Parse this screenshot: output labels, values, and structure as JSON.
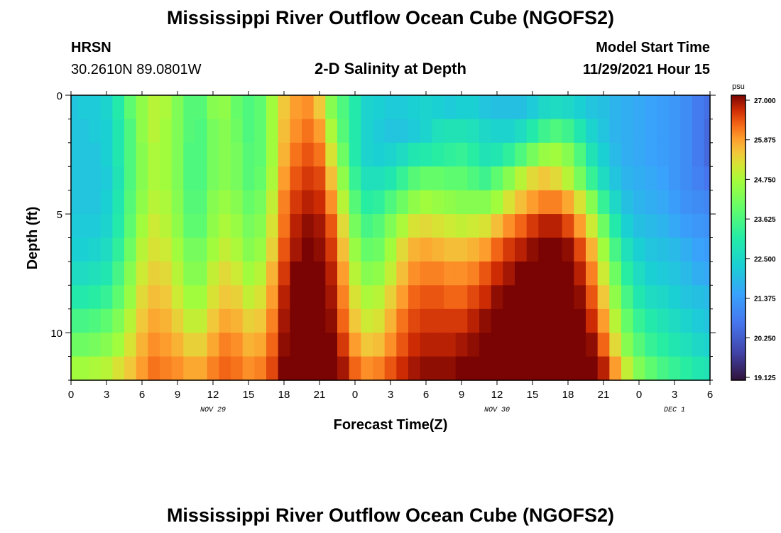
{
  "header": {
    "title": "Mississippi River Outflow Ocean Cube (NGOFS2)",
    "station_name": "HRSN",
    "station_coords": "30.2610N  89.0801W",
    "model_start_label": "Model Start Time",
    "model_start_value": "11/29/2021 Hour 15",
    "footer_title": "Mississippi River Outflow Ocean Cube (NGOFS2)"
  },
  "chart_data": {
    "type": "heatmap",
    "title": "2-D Salinity at Depth",
    "xlabel": "Forecast Time(Z)",
    "ylabel": "Depth (ft)",
    "x_hours": [
      0,
      1,
      2,
      3,
      4,
      5,
      6,
      7,
      8,
      9,
      10,
      11,
      12,
      13,
      14,
      15,
      16,
      17,
      18,
      19,
      20,
      21,
      22,
      23,
      24,
      25,
      26,
      27,
      28,
      29,
      30,
      31,
      32,
      33,
      34,
      35,
      36,
      37,
      38,
      39,
      40,
      41,
      42,
      43,
      44,
      45,
      46,
      47,
      48,
      49,
      50,
      51,
      52,
      53,
      54
    ],
    "xlim": [
      0,
      54
    ],
    "x_ticks": [
      0,
      3,
      6,
      9,
      12,
      15,
      18,
      21,
      24,
      27,
      30,
      33,
      36,
      39,
      42,
      45,
      48,
      51,
      54
    ],
    "x_tick_labels": [
      "0",
      "3",
      "6",
      "9",
      "12",
      "15",
      "18",
      "21",
      "0",
      "3",
      "6",
      "9",
      "12",
      "15",
      "18",
      "21",
      "0",
      "3",
      "6"
    ],
    "date_labels": [
      {
        "text": "NOV 29",
        "x": 12
      },
      {
        "text": "NOV 30",
        "x": 36
      },
      {
        "text": "DEC 1",
        "x": 51
      }
    ],
    "y_depths": [
      0.5,
      1.5,
      2.5,
      3.5,
      4.5,
      5.5,
      6.5,
      7.5,
      8.5,
      9.5,
      10.5,
      11.5
    ],
    "ylim": [
      0,
      12
    ],
    "y_ticks": [
      0,
      5,
      10
    ],
    "y_tick_labels": [
      "0",
      "5",
      "10"
    ],
    "colorbar": {
      "label": "psu",
      "min": 19.125,
      "max": 27.0,
      "tick_labels": [
        "27.000",
        "25.875",
        "24.750",
        "23.625",
        "22.500",
        "21.375",
        "20.250",
        "19.125"
      ]
    },
    "values": [
      [
        22.1,
        22.2,
        22.2,
        22.4,
        23.0,
        23.8,
        24.4,
        24.8,
        24.7,
        24.2,
        23.7,
        23.7,
        24.3,
        24.4,
        23.9,
        23.6,
        23.8,
        24.6,
        25.4,
        25.8,
        25.9,
        25.4,
        24.3,
        23.6,
        23.0,
        22.4,
        22.3,
        22.2,
        22.2,
        22.3,
        22.4,
        22.3,
        22.2,
        22.3,
        22.3,
        22.1,
        22.0,
        22.0,
        22.0,
        22.2,
        22.5,
        22.6,
        22.5,
        22.3,
        22.1,
        22.0,
        21.8,
        21.7,
        21.6,
        21.5,
        21.4,
        21.3,
        21.1,
        20.8,
        20.6
      ],
      [
        22.1,
        22.1,
        22.2,
        22.3,
        22.9,
        23.6,
        24.4,
        24.8,
        24.6,
        24.2,
        23.7,
        23.6,
        24.1,
        24.3,
        24.0,
        23.6,
        23.8,
        24.6,
        25.5,
        25.9,
        26.1,
        25.8,
        24.7,
        23.7,
        23.0,
        22.4,
        22.2,
        22.1,
        22.1,
        22.2,
        22.4,
        22.7,
        22.8,
        22.8,
        22.7,
        22.5,
        22.4,
        22.4,
        22.6,
        23.0,
        23.4,
        23.6,
        23.4,
        22.9,
        22.4,
        22.1,
        21.8,
        21.7,
        21.6,
        21.5,
        21.4,
        21.3,
        21.1,
        20.8,
        20.5
      ],
      [
        22.1,
        22.1,
        22.1,
        22.3,
        22.9,
        23.6,
        24.3,
        24.7,
        24.6,
        24.2,
        23.6,
        23.6,
        24.1,
        24.3,
        24.1,
        23.7,
        23.8,
        24.6,
        25.6,
        26.1,
        26.3,
        26.1,
        25.1,
        24.0,
        23.0,
        22.4,
        22.3,
        22.4,
        22.6,
        22.9,
        23.0,
        23.1,
        23.2,
        23.3,
        23.1,
        22.8,
        22.9,
        23.2,
        23.6,
        24.1,
        24.5,
        24.6,
        24.3,
        23.6,
        22.8,
        22.3,
        21.9,
        21.7,
        21.6,
        21.5,
        21.4,
        21.3,
        21.1,
        20.8,
        20.5
      ],
      [
        22.1,
        22.1,
        22.1,
        22.2,
        22.8,
        23.6,
        24.3,
        24.7,
        24.6,
        24.2,
        23.6,
        23.6,
        24.1,
        24.3,
        24.1,
        23.7,
        23.9,
        24.7,
        25.8,
        26.3,
        26.5,
        26.4,
        25.5,
        24.4,
        23.3,
        22.7,
        22.7,
        22.9,
        23.3,
        23.7,
        23.9,
        23.9,
        23.8,
        23.8,
        23.6,
        23.4,
        23.8,
        24.3,
        24.8,
        25.2,
        25.4,
        25.2,
        24.8,
        24.1,
        23.3,
        22.6,
        22.1,
        21.8,
        21.7,
        21.6,
        21.5,
        21.3,
        21.1,
        20.9,
        20.7
      ],
      [
        22.1,
        22.1,
        22.1,
        22.3,
        22.9,
        23.7,
        24.4,
        24.8,
        24.7,
        24.3,
        23.7,
        23.7,
        24.3,
        24.5,
        24.3,
        23.9,
        24.1,
        24.9,
        26.0,
        26.5,
        26.7,
        26.6,
        25.9,
        24.8,
        23.7,
        23.1,
        23.2,
        23.6,
        24.0,
        24.4,
        24.6,
        24.5,
        24.4,
        24.3,
        24.3,
        24.3,
        24.6,
        25.1,
        25.5,
        25.8,
        26.0,
        26.0,
        25.7,
        25.1,
        24.3,
        23.3,
        22.5,
        22.0,
        21.8,
        21.7,
        21.6,
        21.4,
        21.2,
        21.1,
        21.0
      ],
      [
        22.2,
        22.2,
        22.2,
        22.4,
        23.0,
        23.8,
        24.6,
        25.0,
        24.8,
        24.4,
        23.8,
        23.8,
        24.4,
        24.7,
        24.5,
        24.1,
        24.3,
        25.1,
        26.1,
        26.7,
        26.9,
        26.8,
        26.3,
        25.2,
        24.1,
        23.5,
        23.7,
        24.2,
        24.7,
        25.1,
        25.2,
        25.1,
        25.0,
        24.9,
        25.0,
        25.1,
        25.5,
        25.9,
        26.2,
        26.5,
        26.7,
        26.7,
        26.4,
        25.8,
        25.0,
        24.0,
        23.0,
        22.3,
        22.0,
        21.9,
        21.8,
        21.6,
        21.4,
        21.3,
        21.2
      ],
      [
        22.3,
        22.3,
        22.4,
        22.6,
        23.2,
        24.0,
        24.8,
        25.1,
        25.0,
        24.6,
        24.1,
        24.1,
        24.6,
        24.9,
        24.7,
        24.3,
        24.5,
        25.3,
        26.3,
        26.8,
        27.0,
        26.9,
        26.5,
        25.5,
        24.5,
        23.9,
        24.0,
        24.6,
        25.2,
        25.6,
        25.7,
        25.6,
        25.5,
        25.5,
        25.6,
        25.8,
        26.2,
        26.5,
        26.7,
        26.9,
        27.0,
        27.0,
        26.9,
        26.4,
        25.6,
        24.6,
        23.5,
        22.7,
        22.3,
        22.1,
        22.0,
        21.9,
        21.7,
        21.5,
        21.4
      ],
      [
        22.6,
        22.6,
        22.7,
        22.9,
        23.5,
        24.3,
        25.0,
        25.3,
        25.2,
        24.8,
        24.3,
        24.3,
        24.9,
        25.2,
        25.0,
        24.6,
        24.8,
        25.6,
        26.5,
        27.0,
        27.0,
        27.0,
        26.7,
        25.8,
        24.8,
        24.3,
        24.4,
        24.9,
        25.5,
        25.9,
        26.0,
        26.0,
        25.9,
        25.9,
        26.0,
        26.3,
        26.6,
        26.8,
        27.0,
        27.0,
        27.0,
        27.0,
        27.0,
        26.7,
        26.0,
        25.0,
        24.0,
        23.1,
        22.6,
        22.3,
        22.2,
        22.1,
        21.9,
        21.7,
        21.6
      ],
      [
        23.0,
        23.0,
        23.1,
        23.3,
        23.8,
        24.5,
        25.2,
        25.5,
        25.4,
        25.0,
        24.6,
        24.6,
        25.1,
        25.4,
        25.3,
        24.9,
        25.1,
        25.8,
        26.7,
        27.0,
        27.0,
        27.0,
        26.8,
        26.0,
        25.1,
        24.7,
        24.8,
        25.3,
        25.8,
        26.2,
        26.3,
        26.3,
        26.2,
        26.2,
        26.4,
        26.6,
        26.9,
        27.0,
        27.0,
        27.0,
        27.0,
        27.0,
        27.0,
        26.9,
        26.3,
        25.4,
        24.4,
        23.5,
        22.9,
        22.6,
        22.5,
        22.3,
        22.1,
        22.0,
        21.9
      ],
      [
        23.5,
        23.5,
        23.6,
        23.8,
        24.2,
        24.8,
        25.4,
        25.7,
        25.6,
        25.3,
        24.9,
        24.9,
        25.4,
        25.7,
        25.6,
        25.3,
        25.4,
        26.0,
        26.8,
        27.0,
        27.0,
        27.0,
        26.9,
        26.2,
        25.4,
        25.0,
        25.1,
        25.6,
        26.1,
        26.4,
        26.5,
        26.5,
        26.5,
        26.5,
        26.7,
        26.9,
        27.0,
        27.0,
        27.0,
        27.0,
        27.0,
        27.0,
        27.0,
        27.0,
        26.6,
        25.8,
        24.8,
        23.9,
        23.3,
        23.0,
        22.8,
        22.6,
        22.4,
        22.2,
        22.1
      ],
      [
        24.0,
        24.0,
        24.1,
        24.3,
        24.6,
        25.1,
        25.6,
        25.9,
        25.8,
        25.6,
        25.3,
        25.3,
        25.7,
        26.0,
        25.9,
        25.6,
        25.7,
        26.2,
        26.9,
        27.0,
        27.0,
        27.0,
        27.0,
        26.5,
        25.8,
        25.4,
        25.5,
        25.9,
        26.3,
        26.6,
        26.7,
        26.7,
        26.7,
        26.8,
        26.9,
        27.0,
        27.0,
        27.0,
        27.0,
        27.0,
        27.0,
        27.0,
        27.0,
        27.0,
        26.9,
        26.2,
        25.2,
        24.3,
        23.7,
        23.3,
        23.1,
        22.9,
        22.7,
        22.5,
        22.4
      ],
      [
        24.6,
        24.6,
        24.7,
        24.8,
        25.1,
        25.4,
        25.8,
        26.1,
        26.0,
        25.9,
        25.7,
        25.7,
        26.0,
        26.2,
        26.1,
        25.9,
        26.0,
        26.4,
        27.0,
        27.0,
        27.0,
        27.0,
        27.0,
        26.8,
        26.2,
        25.9,
        26.0,
        26.3,
        26.6,
        26.8,
        26.9,
        26.9,
        26.9,
        27.0,
        27.0,
        27.0,
        27.0,
        27.0,
        27.0,
        27.0,
        27.0,
        27.0,
        27.0,
        27.0,
        27.0,
        26.7,
        25.8,
        24.9,
        24.2,
        23.8,
        23.5,
        23.3,
        23.1,
        22.9,
        22.8
      ]
    ]
  }
}
